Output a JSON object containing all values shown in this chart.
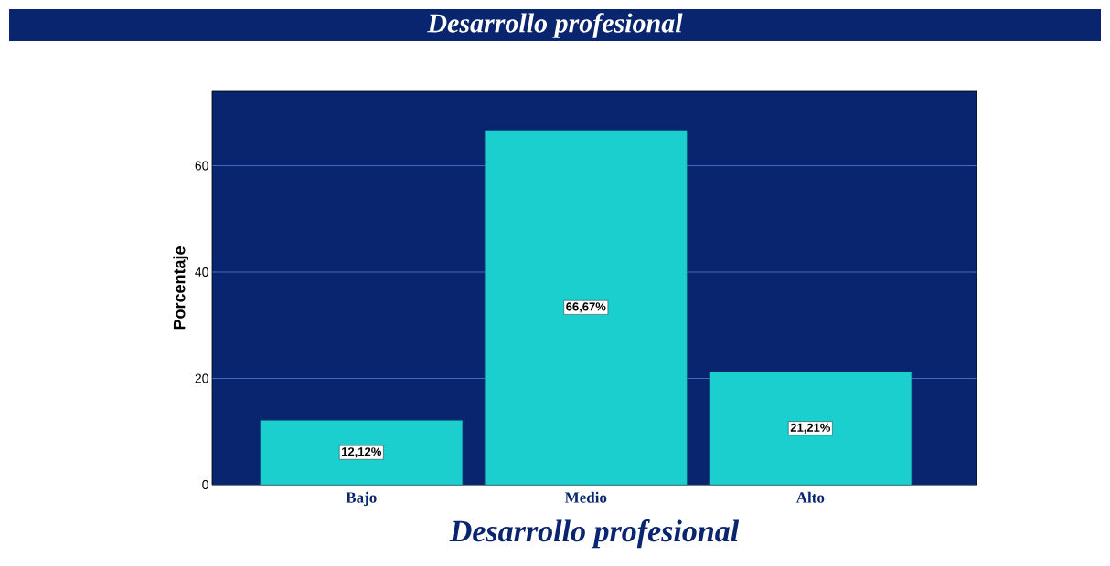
{
  "chart_data": {
    "type": "bar",
    "title": "Desarrollo profesional",
    "xlabel": "Desarrollo profesional",
    "ylabel": "Porcentaje",
    "categories": [
      "Bajo",
      "Medio",
      "Alto"
    ],
    "values": [
      12.12,
      66.67,
      21.21
    ],
    "color": "#1ccfcf",
    "value_labels": [
      "12,12%",
      "66,67%",
      "21,21%"
    ],
    "ylim": [
      0,
      74
    ],
    "yticks": [
      0,
      20,
      40,
      60
    ],
    "grid": "y"
  }
}
